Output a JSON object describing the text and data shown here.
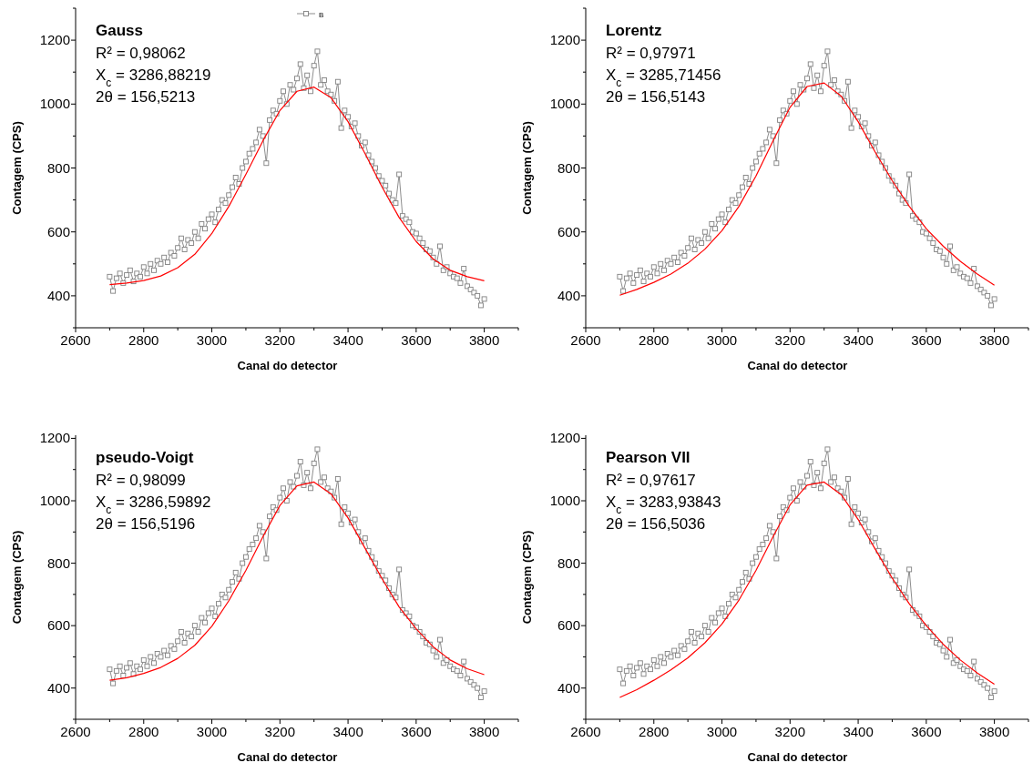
{
  "chart_data": [
    {
      "type": "line",
      "title": "Gauss",
      "annotations": [
        "R² = 0,98062",
        "X$_{c}$ = 3286,88219",
        "2θ = 156,5213"
      ],
      "xlabel": "Canal do detector",
      "ylabel": "Contagem (CPS)",
      "legend": "top",
      "xlim": [
        2600,
        3900
      ],
      "ylim": [
        300,
        1300
      ],
      "xticks": [
        2600,
        {
          "value": 2700,
          "label": null
        },
        2800,
        {
          "value": 2900,
          "label": null
        },
        3000,
        {
          "value": 3100,
          "label": null
        },
        3200,
        {
          "value": 3300,
          "label": null
        },
        3400,
        {
          "value": 3500,
          "label": null
        },
        3600,
        {
          "value": 3700,
          "label": null
        },
        3800,
        {
          "value": 3900,
          "label": null
        }
      ],
      "yticks": [
        {
          "value": 300,
          "label": null
        },
        400,
        {
          "value": 500,
          "label": null
        },
        600,
        {
          "value": 700,
          "label": null
        },
        800,
        {
          "value": 900,
          "label": null
        },
        1000,
        {
          "value": 1100,
          "label": null
        },
        1200,
        {
          "value": 1300,
          "label": null
        }
      ],
      "series": [
        {
          "name": "B",
          "color": "#808080",
          "marker": "square",
          "x": [
            2700,
            2710,
            2720,
            2730,
            2740,
            2750,
            2760,
            2770,
            2780,
            2790,
            2800,
            2810,
            2820,
            2830,
            2840,
            2850,
            2860,
            2870,
            2880,
            2890,
            2900,
            2910,
            2920,
            2930,
            2940,
            2950,
            2960,
            2970,
            2980,
            2990,
            3000,
            3010,
            3020,
            3030,
            3040,
            3050,
            3060,
            3070,
            3080,
            3090,
            3100,
            3110,
            3120,
            3130,
            3140,
            3150,
            3160,
            3170,
            3180,
            3190,
            3200,
            3210,
            3220,
            3230,
            3240,
            3250,
            3260,
            3270,
            3280,
            3290,
            3300,
            3310,
            3320,
            3330,
            3340,
            3350,
            3360,
            3370,
            3380,
            3390,
            3400,
            3410,
            3420,
            3430,
            3440,
            3450,
            3460,
            3470,
            3480,
            3490,
            3500,
            3510,
            3520,
            3530,
            3540,
            3550,
            3560,
            3570,
            3580,
            3590,
            3600,
            3610,
            3620,
            3630,
            3640,
            3650,
            3660,
            3670,
            3680,
            3690,
            3700,
            3710,
            3720,
            3730,
            3740,
            3750,
            3760,
            3770,
            3780,
            3790,
            3800
          ],
          "values": [
            460,
            415,
            455,
            470,
            440,
            465,
            480,
            445,
            470,
            460,
            490,
            470,
            500,
            480,
            510,
            500,
            520,
            505,
            535,
            525,
            550,
            580,
            545,
            575,
            565,
            600,
            580,
            625,
            610,
            640,
            655,
            630,
            670,
            700,
            690,
            715,
            740,
            770,
            750,
            800,
            820,
            845,
            860,
            880,
            920,
            900,
            815,
            950,
            980,
            970,
            1010,
            1040,
            1000,
            1060,
            1045,
            1080,
            1125,
            1050,
            1090,
            1040,
            1120,
            1165,
            1060,
            1075,
            1040,
            1030,
            1010,
            1070,
            925,
            980,
            960,
            930,
            940,
            900,
            870,
            880,
            840,
            820,
            800,
            775,
            760,
            745,
            720,
            700,
            690,
            780,
            650,
            640,
            630,
            600,
            595,
            580,
            565,
            545,
            540,
            520,
            500,
            555,
            480,
            490,
            470,
            460,
            455,
            440,
            485,
            430,
            420,
            410,
            400,
            370,
            390
          ]
        },
        {
          "color": "#ff0000",
          "marker": "none",
          "x": [
            2700,
            2750,
            2800,
            2850,
            2900,
            2950,
            3000,
            3050,
            3100,
            3150,
            3200,
            3250,
            3300,
            3350,
            3400,
            3450,
            3500,
            3550,
            3600,
            3650,
            3700,
            3750,
            3800
          ],
          "values": [
            435,
            440,
            448,
            462,
            488,
            530,
            595,
            680,
            780,
            885,
            980,
            1040,
            1053,
            1020,
            945,
            845,
            740,
            645,
            570,
            515,
            480,
            460,
            447
          ]
        }
      ]
    },
    {
      "type": "line",
      "title": "Lorentz",
      "annotations": [
        "R² = 0,97971",
        "X$_{c}$ = 3285,71456",
        "2θ = 156,5143"
      ],
      "xlabel": "Canal do detector",
      "ylabel": "Contagem (CPS)",
      "xlim": [
        2600,
        3900
      ],
      "ylim": [
        300,
        1300
      ],
      "xticks": [
        2600,
        {
          "value": 2700,
          "label": null
        },
        2800,
        {
          "value": 2900,
          "label": null
        },
        3000,
        {
          "value": 3100,
          "label": null
        },
        3200,
        {
          "value": 3300,
          "label": null
        },
        3400,
        {
          "value": 3500,
          "label": null
        },
        3600,
        {
          "value": 3700,
          "label": null
        },
        3800,
        {
          "value": 3900,
          "label": null
        }
      ],
      "yticks": [
        {
          "value": 300,
          "label": null
        },
        400,
        {
          "value": 500,
          "label": null
        },
        600,
        {
          "value": 700,
          "label": null
        },
        800,
        {
          "value": 900,
          "label": null
        },
        1000,
        {
          "value": 1100,
          "label": null
        },
        1200,
        {
          "value": 1300,
          "label": null
        }
      ],
      "series": [
        {
          "color": "#808080",
          "marker": "square",
          "x": [
            2700,
            2710,
            2720,
            2730,
            2740,
            2750,
            2760,
            2770,
            2780,
            2790,
            2800,
            2810,
            2820,
            2830,
            2840,
            2850,
            2860,
            2870,
            2880,
            2890,
            2900,
            2910,
            2920,
            2930,
            2940,
            2950,
            2960,
            2970,
            2980,
            2990,
            3000,
            3010,
            3020,
            3030,
            3040,
            3050,
            3060,
            3070,
            3080,
            3090,
            3100,
            3110,
            3120,
            3130,
            3140,
            3150,
            3160,
            3170,
            3180,
            3190,
            3200,
            3210,
            3220,
            3230,
            3240,
            3250,
            3260,
            3270,
            3280,
            3290,
            3300,
            3310,
            3320,
            3330,
            3340,
            3350,
            3360,
            3370,
            3380,
            3390,
            3400,
            3410,
            3420,
            3430,
            3440,
            3450,
            3460,
            3470,
            3480,
            3490,
            3500,
            3510,
            3520,
            3530,
            3540,
            3550,
            3560,
            3570,
            3580,
            3590,
            3600,
            3610,
            3620,
            3630,
            3640,
            3650,
            3660,
            3670,
            3680,
            3690,
            3700,
            3710,
            3720,
            3730,
            3740,
            3750,
            3760,
            3770,
            3780,
            3790,
            3800
          ],
          "values": [
            460,
            415,
            455,
            470,
            440,
            465,
            480,
            445,
            470,
            460,
            490,
            470,
            500,
            480,
            510,
            500,
            520,
            505,
            535,
            525,
            550,
            580,
            545,
            575,
            565,
            600,
            580,
            625,
            610,
            640,
            655,
            630,
            670,
            700,
            690,
            715,
            740,
            770,
            750,
            800,
            820,
            845,
            860,
            880,
            920,
            900,
            815,
            950,
            980,
            970,
            1010,
            1040,
            1000,
            1060,
            1045,
            1080,
            1125,
            1050,
            1090,
            1040,
            1120,
            1165,
            1060,
            1075,
            1040,
            1030,
            1010,
            1070,
            925,
            980,
            960,
            930,
            940,
            900,
            870,
            880,
            840,
            820,
            800,
            775,
            760,
            745,
            720,
            700,
            690,
            780,
            650,
            640,
            630,
            600,
            595,
            580,
            565,
            545,
            540,
            520,
            500,
            555,
            480,
            490,
            470,
            460,
            455,
            440,
            485,
            430,
            420,
            410,
            400,
            370,
            390
          ]
        },
        {
          "color": "#ff0000",
          "marker": "none",
          "x": [
            2700,
            2750,
            2800,
            2850,
            2900,
            2950,
            3000,
            3050,
            3100,
            3150,
            3200,
            3250,
            3300,
            3350,
            3400,
            3450,
            3500,
            3550,
            3600,
            3650,
            3700,
            3750,
            3800
          ],
          "values": [
            402,
            420,
            442,
            468,
            502,
            546,
            604,
            680,
            775,
            885,
            990,
            1055,
            1066,
            1025,
            945,
            850,
            760,
            680,
            610,
            555,
            508,
            468,
            433
          ]
        }
      ]
    },
    {
      "type": "line",
      "title": "pseudo-Voigt",
      "annotations": [
        "R² = 0,98099",
        "X$_{c}$ = 3286,59892",
        "2θ = 156,5196"
      ],
      "xlabel": "Canal do detector",
      "ylabel": "Contagem (CPS)",
      "xlim": [
        2600,
        3900
      ],
      "ylim": [
        300,
        1210
      ],
      "xticks": [
        2600,
        {
          "value": 2700,
          "label": null
        },
        2800,
        {
          "value": 2900,
          "label": null
        },
        3000,
        {
          "value": 3100,
          "label": null
        },
        3200,
        {
          "value": 3300,
          "label": null
        },
        3400,
        {
          "value": 3500,
          "label": null
        },
        3600,
        {
          "value": 3700,
          "label": null
        },
        3800,
        {
          "value": 3900,
          "label": null
        }
      ],
      "yticks": [
        {
          "value": 300,
          "label": null
        },
        400,
        {
          "value": 500,
          "label": null
        },
        600,
        {
          "value": 700,
          "label": null
        },
        800,
        {
          "value": 900,
          "label": null
        },
        1000,
        {
          "value": 1100,
          "label": null
        },
        1200
      ],
      "series": [
        {
          "color": "#808080",
          "marker": "square",
          "x": [
            2700,
            2710,
            2720,
            2730,
            2740,
            2750,
            2760,
            2770,
            2780,
            2790,
            2800,
            2810,
            2820,
            2830,
            2840,
            2850,
            2860,
            2870,
            2880,
            2890,
            2900,
            2910,
            2920,
            2930,
            2940,
            2950,
            2960,
            2970,
            2980,
            2990,
            3000,
            3010,
            3020,
            3030,
            3040,
            3050,
            3060,
            3070,
            3080,
            3090,
            3100,
            3110,
            3120,
            3130,
            3140,
            3150,
            3160,
            3170,
            3180,
            3190,
            3200,
            3210,
            3220,
            3230,
            3240,
            3250,
            3260,
            3270,
            3280,
            3290,
            3300,
            3310,
            3320,
            3330,
            3340,
            3350,
            3360,
            3370,
            3380,
            3390,
            3400,
            3410,
            3420,
            3430,
            3440,
            3450,
            3460,
            3470,
            3480,
            3490,
            3500,
            3510,
            3520,
            3530,
            3540,
            3550,
            3560,
            3570,
            3580,
            3590,
            3600,
            3610,
            3620,
            3630,
            3640,
            3650,
            3660,
            3670,
            3680,
            3690,
            3700,
            3710,
            3720,
            3730,
            3740,
            3750,
            3760,
            3770,
            3780,
            3790,
            3800
          ],
          "values": [
            460,
            415,
            455,
            470,
            440,
            465,
            480,
            445,
            470,
            460,
            490,
            470,
            500,
            480,
            510,
            500,
            520,
            505,
            535,
            525,
            550,
            580,
            545,
            575,
            565,
            600,
            580,
            625,
            610,
            640,
            655,
            630,
            670,
            700,
            690,
            715,
            740,
            770,
            750,
            800,
            820,
            845,
            860,
            880,
            920,
            900,
            815,
            950,
            980,
            970,
            1010,
            1040,
            1000,
            1060,
            1045,
            1080,
            1125,
            1050,
            1090,
            1040,
            1120,
            1165,
            1060,
            1075,
            1040,
            1030,
            1010,
            1070,
            925,
            980,
            960,
            930,
            940,
            900,
            870,
            880,
            840,
            820,
            800,
            775,
            760,
            745,
            720,
            700,
            690,
            780,
            650,
            640,
            630,
            600,
            595,
            580,
            565,
            545,
            540,
            520,
            500,
            555,
            480,
            490,
            470,
            460,
            455,
            440,
            485,
            430,
            420,
            410,
            400,
            370,
            390
          ]
        },
        {
          "color": "#ff0000",
          "marker": "none",
          "x": [
            2700,
            2750,
            2800,
            2850,
            2900,
            2950,
            3000,
            3050,
            3100,
            3150,
            3200,
            3250,
            3300,
            3350,
            3400,
            3450,
            3500,
            3550,
            3600,
            3650,
            3700,
            3750,
            3800
          ],
          "values": [
            425,
            433,
            447,
            466,
            495,
            537,
            598,
            680,
            777,
            885,
            985,
            1048,
            1060,
            1022,
            945,
            848,
            750,
            660,
            590,
            532,
            490,
            462,
            443
          ]
        }
      ]
    },
    {
      "type": "line",
      "title": "Pearson VII",
      "annotations": [
        "R² = 0,97617",
        "X$_{c}$ = 3283,93843",
        "2θ = 156,5036"
      ],
      "xlabel": "Canal do detector",
      "ylabel": "Contagem (CPS)",
      "xlim": [
        2600,
        3900
      ],
      "ylim": [
        300,
        1210
      ],
      "xticks": [
        2600,
        {
          "value": 2700,
          "label": null
        },
        2800,
        {
          "value": 2900,
          "label": null
        },
        3000,
        {
          "value": 3100,
          "label": null
        },
        3200,
        {
          "value": 3300,
          "label": null
        },
        3400,
        {
          "value": 3500,
          "label": null
        },
        3600,
        {
          "value": 3700,
          "label": null
        },
        3800,
        {
          "value": 3900,
          "label": null
        }
      ],
      "yticks": [
        {
          "value": 300,
          "label": null
        },
        400,
        {
          "value": 500,
          "label": null
        },
        600,
        {
          "value": 700,
          "label": null
        },
        800,
        {
          "value": 900,
          "label": null
        },
        1000,
        {
          "value": 1100,
          "label": null
        },
        1200
      ],
      "series": [
        {
          "color": "#808080",
          "marker": "square",
          "x": [
            2700,
            2710,
            2720,
            2730,
            2740,
            2750,
            2760,
            2770,
            2780,
            2790,
            2800,
            2810,
            2820,
            2830,
            2840,
            2850,
            2860,
            2870,
            2880,
            2890,
            2900,
            2910,
            2920,
            2930,
            2940,
            2950,
            2960,
            2970,
            2980,
            2990,
            3000,
            3010,
            3020,
            3030,
            3040,
            3050,
            3060,
            3070,
            3080,
            3090,
            3100,
            3110,
            3120,
            3130,
            3140,
            3150,
            3160,
            3170,
            3180,
            3190,
            3200,
            3210,
            3220,
            3230,
            3240,
            3250,
            3260,
            3270,
            3280,
            3290,
            3300,
            3310,
            3320,
            3330,
            3340,
            3350,
            3360,
            3370,
            3380,
            3390,
            3400,
            3410,
            3420,
            3430,
            3440,
            3450,
            3460,
            3470,
            3480,
            3490,
            3500,
            3510,
            3520,
            3530,
            3540,
            3550,
            3560,
            3570,
            3580,
            3590,
            3600,
            3610,
            3620,
            3630,
            3640,
            3650,
            3660,
            3670,
            3680,
            3690,
            3700,
            3710,
            3720,
            3730,
            3740,
            3750,
            3760,
            3770,
            3780,
            3790,
            3800
          ],
          "values": [
            460,
            415,
            455,
            470,
            440,
            465,
            480,
            445,
            470,
            460,
            490,
            470,
            500,
            480,
            510,
            500,
            520,
            505,
            535,
            525,
            550,
            580,
            545,
            575,
            565,
            600,
            580,
            625,
            610,
            640,
            655,
            630,
            670,
            700,
            690,
            715,
            740,
            770,
            750,
            800,
            820,
            845,
            860,
            880,
            920,
            900,
            815,
            950,
            980,
            970,
            1010,
            1040,
            1000,
            1060,
            1045,
            1080,
            1125,
            1050,
            1090,
            1040,
            1120,
            1165,
            1060,
            1075,
            1040,
            1030,
            1010,
            1070,
            925,
            980,
            960,
            930,
            940,
            900,
            870,
            880,
            840,
            820,
            800,
            775,
            760,
            745,
            720,
            700,
            690,
            780,
            650,
            640,
            630,
            600,
            595,
            580,
            565,
            545,
            540,
            520,
            500,
            555,
            480,
            490,
            470,
            460,
            455,
            440,
            485,
            430,
            420,
            410,
            400,
            370,
            390
          ]
        },
        {
          "color": "#ff0000",
          "marker": "none",
          "x": [
            2700,
            2750,
            2800,
            2850,
            2900,
            2950,
            3000,
            3050,
            3100,
            3150,
            3200,
            3250,
            3300,
            3350,
            3400,
            3450,
            3500,
            3550,
            3600,
            3650,
            3700,
            3750,
            3800
          ],
          "values": [
            370,
            395,
            425,
            458,
            497,
            545,
            605,
            682,
            777,
            885,
            987,
            1050,
            1060,
            1020,
            940,
            845,
            752,
            670,
            600,
            540,
            490,
            448,
            412
          ]
        }
      ]
    }
  ]
}
